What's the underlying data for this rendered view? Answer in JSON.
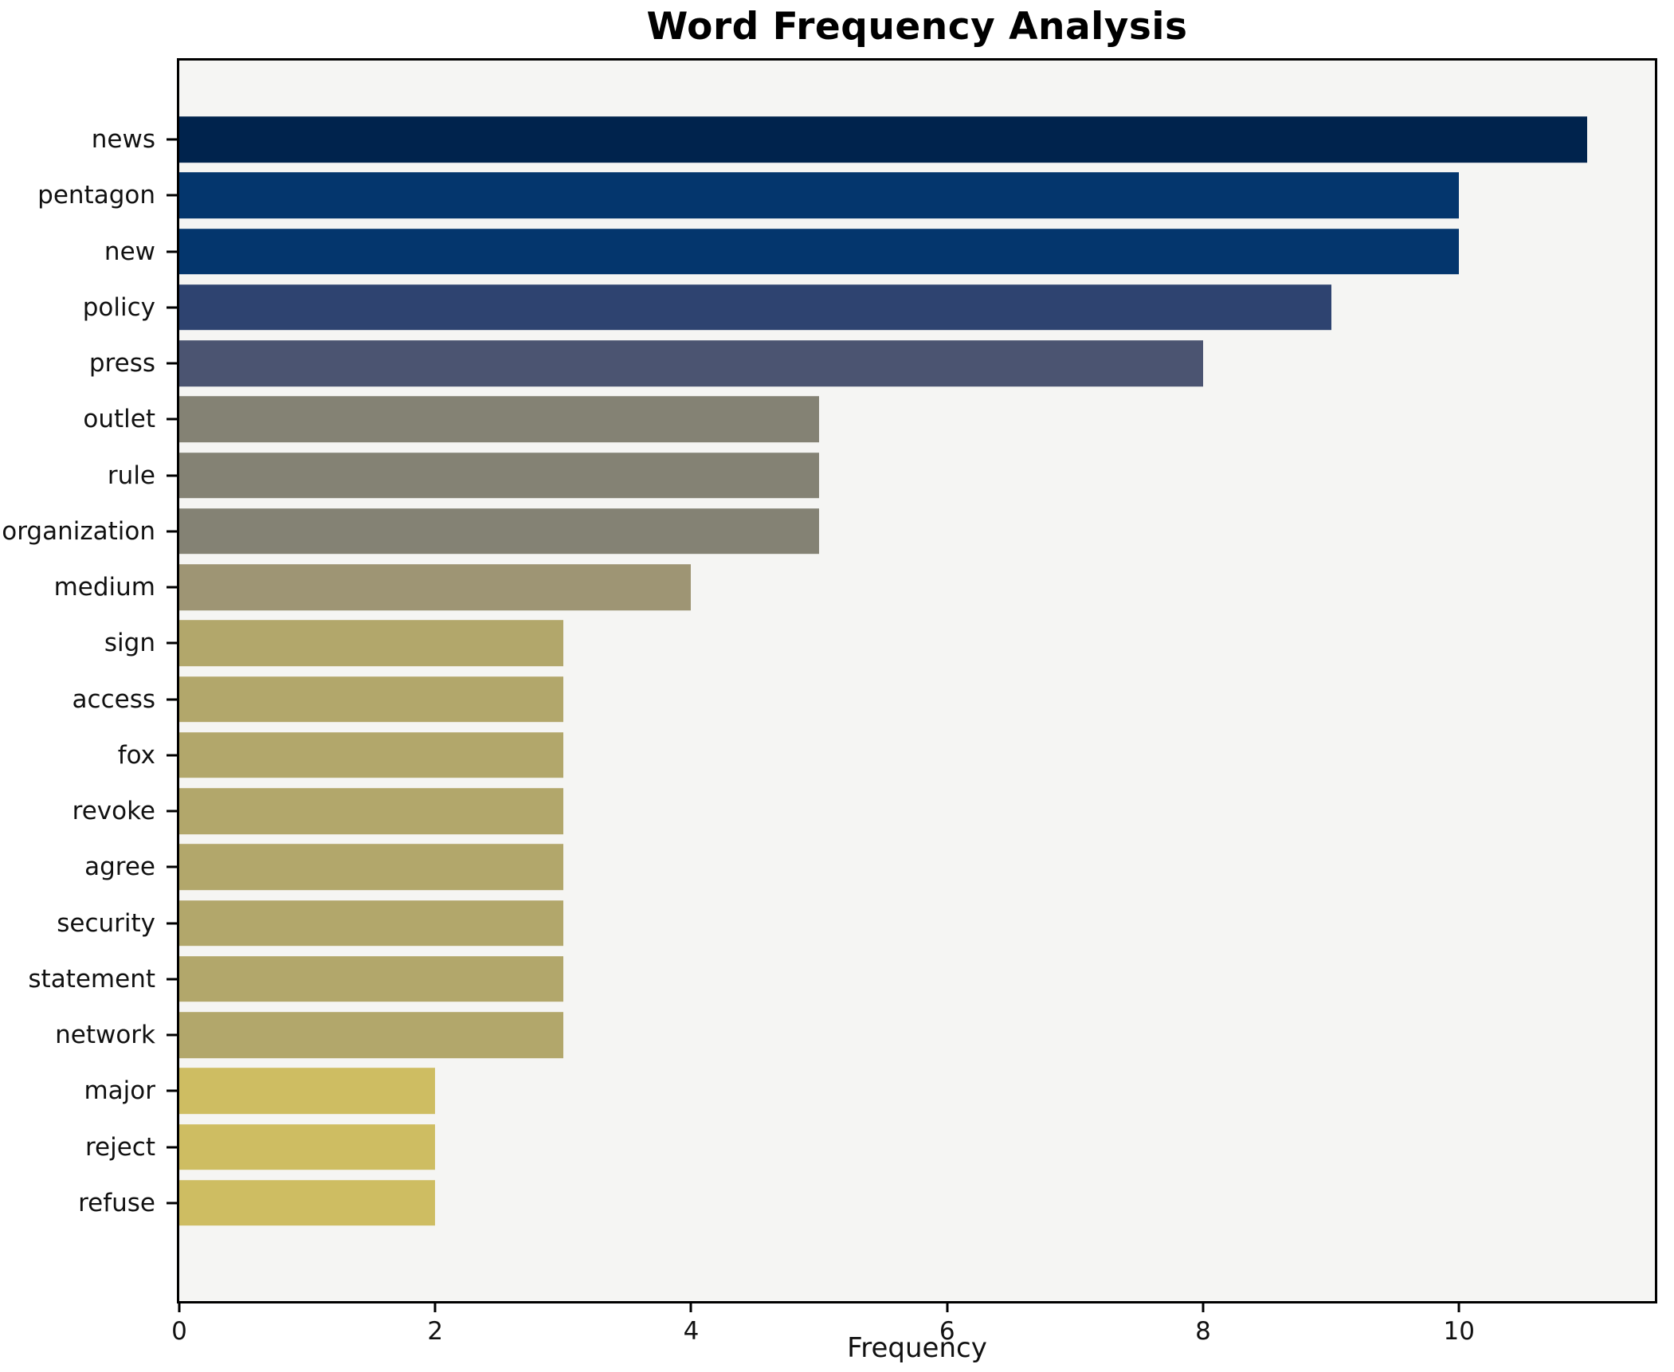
{
  "title": "Word Frequency Analysis",
  "chart_data": {
    "type": "bar",
    "orientation": "horizontal",
    "title": "Word Frequency Analysis",
    "xlabel": "Frequency",
    "ylabel": "",
    "categories": [
      "news",
      "pentagon",
      "new",
      "policy",
      "press",
      "outlet",
      "rule",
      "organization",
      "medium",
      "sign",
      "access",
      "fox",
      "revoke",
      "agree",
      "security",
      "statement",
      "network",
      "major",
      "reject",
      "refuse"
    ],
    "values": [
      11,
      10,
      10,
      9,
      8,
      5,
      5,
      5,
      4,
      3,
      3,
      3,
      3,
      3,
      3,
      3,
      3,
      2,
      2,
      2
    ],
    "bar_colors": [
      "#00234d",
      "#04366d",
      "#04366d",
      "#2e4370",
      "#4b5471",
      "#848274",
      "#848274",
      "#848274",
      "#9e9574",
      "#b2a76b",
      "#b2a76b",
      "#b2a76b",
      "#b2a76b",
      "#b2a76b",
      "#b2a76b",
      "#b2a76b",
      "#b2a76b",
      "#cebd62",
      "#cebd62",
      "#cebd62"
    ],
    "xlim": [
      0,
      11.53
    ],
    "xticks": [
      0,
      2,
      4,
      6,
      8,
      10
    ],
    "grid": false,
    "legend_position": "none",
    "plot_background": "#f5f5f3",
    "figure_background": "#ffffff",
    "spine_color": "#000000"
  }
}
